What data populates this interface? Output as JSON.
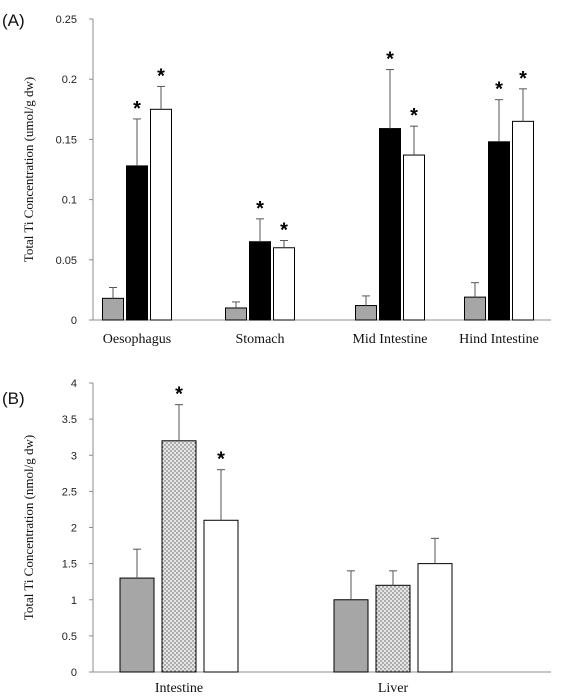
{
  "chart_data": [
    {
      "type": "bar",
      "panel_label": "(A)",
      "ylabel": "Total Ti Concentration (umol/g dw)",
      "ylim": [
        0,
        0.25
      ],
      "yticks": [
        0,
        0.05,
        0.1,
        0.15,
        0.2,
        0.25
      ],
      "ytick_labels": [
        "0",
        "0.05",
        "0.1",
        "0.15",
        "0.2",
        "0.25"
      ],
      "categories": [
        "Oesophagus",
        "Stomach",
        "Mid Intestine",
        "Hind Intestine"
      ],
      "series": [
        {
          "fill": "#a6a6a6",
          "pattern": "solid",
          "values": [
            0.018,
            0.01,
            0.012,
            0.019
          ],
          "errors": [
            0.009,
            0.005,
            0.008,
            0.012
          ],
          "significant": [
            false,
            false,
            false,
            false
          ]
        },
        {
          "fill": "#000000",
          "pattern": "solid",
          "values": [
            0.128,
            0.065,
            0.159,
            0.148
          ],
          "errors": [
            0.039,
            0.019,
            0.049,
            0.035
          ],
          "significant": [
            true,
            true,
            true,
            true
          ]
        },
        {
          "fill": "#ffffff",
          "pattern": "solid",
          "values": [
            0.175,
            0.06,
            0.137,
            0.165
          ],
          "errors": [
            0.019,
            0.006,
            0.024,
            0.027
          ],
          "significant": [
            true,
            true,
            true,
            true
          ]
        }
      ],
      "significance_marker": "*",
      "grid": false,
      "legend": "none"
    },
    {
      "type": "bar",
      "panel_label": "(B)",
      "ylabel": "Total Ti Concentration (nmol/g dw)",
      "ylim": [
        0,
        4
      ],
      "yticks": [
        0,
        0.5,
        1,
        1.5,
        2,
        2.5,
        3,
        3.5,
        4
      ],
      "ytick_labels": [
        "0",
        "0.5",
        "1",
        "1.5",
        "2",
        "2.5",
        "3",
        "3.5",
        "4"
      ],
      "categories": [
        "Intestine",
        "Liver"
      ],
      "series": [
        {
          "fill": "#a6a6a6",
          "pattern": "solid",
          "values": [
            1.3,
            1.0
          ],
          "errors": [
            0.4,
            0.4
          ],
          "significant": [
            false,
            false
          ]
        },
        {
          "fill": "#d9d9d9",
          "pattern": "dotted",
          "values": [
            3.2,
            1.2
          ],
          "errors": [
            0.5,
            0.2
          ],
          "significant": [
            true,
            false
          ]
        },
        {
          "fill": "#ffffff",
          "pattern": "solid",
          "values": [
            2.1,
            1.5
          ],
          "errors": [
            0.7,
            0.35
          ],
          "significant": [
            true,
            false
          ]
        }
      ],
      "significance_marker": "*",
      "grid": false,
      "legend": "none"
    }
  ]
}
